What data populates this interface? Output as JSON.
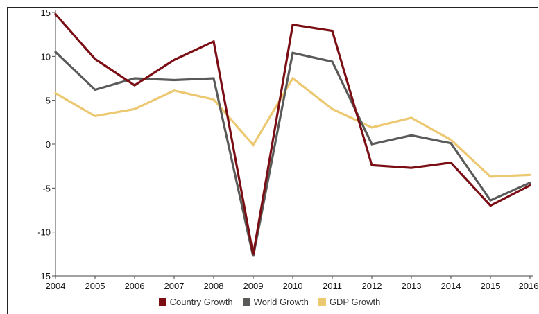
{
  "chart_data": {
    "type": "line",
    "title": "",
    "xlabel": "",
    "ylabel": "",
    "x": [
      "2004",
      "2005",
      "2006",
      "2007",
      "2008",
      "2009",
      "2010",
      "2011",
      "2012",
      "2013",
      "2014",
      "2015",
      "2016"
    ],
    "ylim": [
      -15,
      15
    ],
    "yticks": [
      -15,
      -10,
      -5,
      0,
      5,
      10,
      15
    ],
    "grid": false,
    "legend_position": "bottom",
    "series": [
      {
        "name": "Country Growth",
        "color": "#7a0e14",
        "values": [
          14.8,
          9.7,
          6.7,
          9.6,
          11.7,
          -12.6,
          13.6,
          12.9,
          -2.4,
          -2.7,
          -2.1,
          -7.0,
          -4.7
        ]
      },
      {
        "name": "World Growth",
        "color": "#5a5a58",
        "values": [
          10.5,
          6.2,
          7.5,
          7.3,
          7.5,
          -12.8,
          10.4,
          9.4,
          0.0,
          1.0,
          0.1,
          -6.4,
          -4.4
        ]
      },
      {
        "name": "GDP Growth",
        "color": "#ecc871",
        "values": [
          5.8,
          3.2,
          4.0,
          6.1,
          5.1,
          -0.1,
          7.5,
          4.0,
          1.9,
          3.0,
          0.5,
          -3.7,
          -3.5
        ]
      }
    ]
  }
}
